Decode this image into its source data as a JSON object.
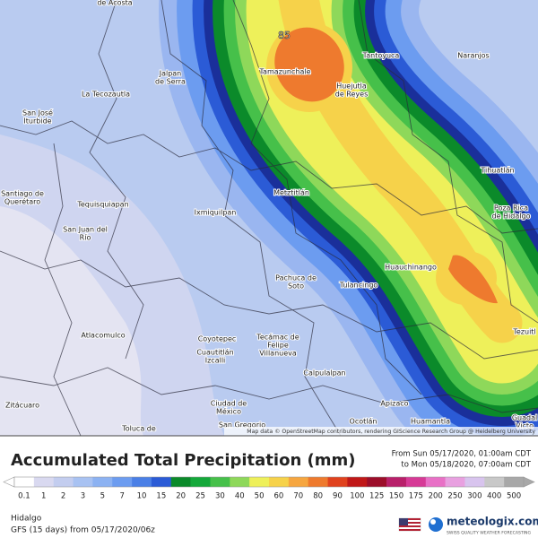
{
  "map": {
    "max_label": "85",
    "attribution": "Map data © OpenStreetMap contributors, rendering GIScience Research Group @ Heidelberg University",
    "places": [
      [
        "de Acosta"
      ],
      [
        "Jalpan",
        "de Serra"
      ],
      [
        "La Tecozautla"
      ],
      [
        "San José",
        "Iturbide"
      ],
      [
        "Tamazunchale"
      ],
      [
        "Tantoyuca"
      ],
      [
        "Naranjos"
      ],
      [
        "Huejutla",
        "de Reyes"
      ],
      [
        "Tihuatlán"
      ],
      [
        "Metztitlán"
      ],
      [
        "Poza Rica",
        "de Hidalgo"
      ],
      [
        "Santiago de",
        "Querétaro"
      ],
      [
        "Tequisquiapan"
      ],
      [
        "Ixmiquilpan"
      ],
      [
        "San Juan del",
        "Río"
      ],
      [
        "Huauchinango"
      ],
      [
        "Pachuca de",
        "Soto"
      ],
      [
        "Tulancingo"
      ],
      [
        "Tezuitl"
      ],
      [
        "Atlacomulco"
      ],
      [
        "Coyotepec"
      ],
      [
        "Tecámac de",
        "Felipe",
        "Villanueva"
      ],
      [
        "Cuautitlán",
        "Izcalli"
      ],
      [
        "Calpulalpan"
      ],
      [
        "Zitácuaro"
      ],
      [
        "Ciudad de",
        "México"
      ],
      [
        "Apizaco"
      ],
      [
        "Ocotlán"
      ],
      [
        "Huamantla"
      ],
      [
        "Toluca de"
      ],
      [
        "San Gregorio"
      ],
      [
        "Guadal",
        "Victo"
      ]
    ]
  },
  "legend": {
    "title": "Accumulated Total Precipitation (mm)",
    "from": "From Sun 05/17/2020, 01:00am CDT",
    "to": "to Mon 05/18/2020, 07:00am CDT",
    "levels": [
      0.1,
      1,
      2,
      3,
      5,
      7,
      10,
      15,
      20,
      25,
      30,
      40,
      50,
      60,
      70,
      80,
      90,
      100,
      125,
      150,
      175,
      200,
      250,
      300,
      400,
      500
    ],
    "colors": [
      "#ffffff",
      "#d9d9f0",
      "#c3cdef",
      "#a8c2f2",
      "#8cb2f2",
      "#6c9cf0",
      "#4a7fe6",
      "#2b5bd6",
      "#0b8a2a",
      "#14a83a",
      "#46c04a",
      "#8ed85a",
      "#eef05a",
      "#f6d24a",
      "#f6a640",
      "#ee7a2e",
      "#e0421e",
      "#c01818",
      "#9c0e2a",
      "#b8206a",
      "#d63a96",
      "#e870c6",
      "#e8a0e0",
      "#d8c4ee",
      "#c8c8c8",
      "#a8a8a8"
    ]
  },
  "footer": {
    "region": "Hidalgo",
    "model": "GFS (15 days) from 05/17/2020/06z",
    "brand": "meteologix.com",
    "tagline": "SWISS QUALITY WEATHER FORECASTING"
  }
}
